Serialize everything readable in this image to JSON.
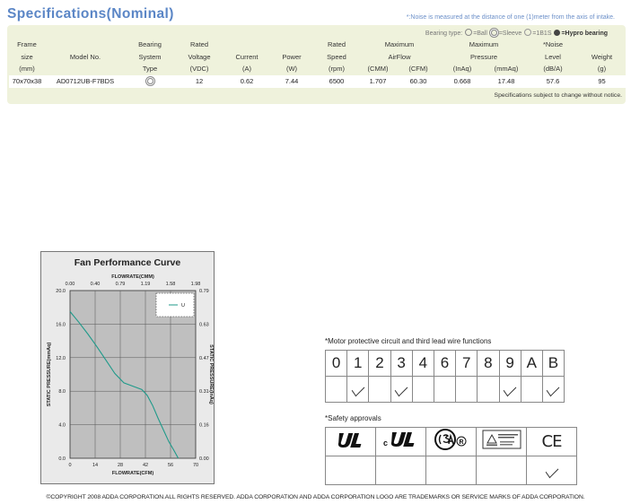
{
  "header": {
    "title": "Specifications(Nominal)",
    "noise_note": "*:Noise is measured at the distance of one (1)meter from the axis of intake."
  },
  "bearing_legend": {
    "prefix": "Bearing type:",
    "ball": "=Ball",
    "sleeve": "=Sleeve",
    "one_b_one_s": "=1B1S",
    "hypro": "=Hypro bearing"
  },
  "spec_table": {
    "header_rows": [
      [
        "Frame",
        "",
        "Bearing",
        "Rated",
        "",
        "",
        "Rated",
        "Maximum",
        "",
        "Maximum",
        "",
        "*Noise",
        ""
      ],
      [
        "size",
        "Model No.",
        "System",
        "Voltage",
        "Current",
        "Power",
        "Speed",
        "AirFlow",
        "",
        "Pressure",
        "",
        "Level",
        "Weight"
      ],
      [
        "(mm)",
        "",
        "Type",
        "(VDC)",
        "(A)",
        "(W)",
        "(rpm)",
        "(CMM)",
        "(CFM)",
        "(InAq)",
        "(mmAq)",
        "(dB/A)",
        "(g)"
      ]
    ],
    "row": {
      "frame": "70x70x38",
      "model": "AD0712UB-F7BDS",
      "bearing_icon": "sleeve-bearing-icon",
      "voltage": "12",
      "current": "0.62",
      "power": "7.44",
      "speed": "6500",
      "cmm": "1.707",
      "cfm": "60.30",
      "inaq": "0.668",
      "mmaq": "17.48",
      "noise": "57.6",
      "weight": "95"
    },
    "footer_note": "Specifications subject to change without notice."
  },
  "chart_data": {
    "type": "line",
    "title": "Fan Performance Curve",
    "xlabel": "FLOWRATE(CFM)",
    "x2label": "FLOWRATE(CMM)",
    "ylabel": "STATIC PRESSURE(mmAq)",
    "y2label": "STATIC PRESSURE(InAq)",
    "xlim": [
      0,
      70
    ],
    "ylim": [
      0,
      20
    ],
    "x_ticks": [
      "0",
      "14",
      "28",
      "42",
      "56",
      "70"
    ],
    "x2_ticks": [
      "0.00",
      "0.40",
      "0.79",
      "1.19",
      "1.58",
      "1.98"
    ],
    "y_ticks": [
      "0.0",
      "4.0",
      "8.0",
      "12.0",
      "16.0",
      "20.0"
    ],
    "y2_ticks": [
      "0.00",
      "0.16",
      "0.31",
      "0.47",
      "0.63",
      "0.79"
    ],
    "grid": true,
    "legend_position": "top-right",
    "series_color": "#1f9a8a",
    "series": [
      {
        "name": "U",
        "x": [
          0,
          5,
          10,
          15,
          20,
          25,
          30,
          35,
          40,
          43,
          46,
          49,
          52,
          55,
          58,
          60.3
        ],
        "y": [
          17.5,
          16.2,
          14.8,
          13.3,
          11.7,
          10.1,
          9.0,
          8.6,
          8.2,
          7.5,
          6.3,
          4.8,
          3.4,
          2.0,
          0.9,
          0.0
        ]
      }
    ]
  },
  "motor_functions": {
    "title": "*Motor protective circuit and third lead wire functions",
    "codes": [
      "0",
      "1",
      "2",
      "3",
      "4",
      "6",
      "7",
      "8",
      "9",
      "A",
      "B"
    ],
    "checked": [
      false,
      true,
      false,
      true,
      false,
      false,
      false,
      false,
      true,
      false,
      true
    ]
  },
  "safety": {
    "title": "*Safety approvals",
    "marks": [
      "ul-recognized-icon",
      "cul-recognized-icon",
      "csa-icon",
      "tuv-approved-icon",
      "ce-mark-icon"
    ],
    "ce_text": "CE",
    "checked": [
      false,
      false,
      false,
      false,
      true
    ]
  },
  "copyright": "©COPYRIGHT 2008 ADDA CORPORATION.ALL RIGHTS RESERVED. ADDA CORPORATION AND ADDA  CORPORATION LOGO ARE TRADEMARKS OR SERVICE MARKS OF ADDA CORPORATION."
}
